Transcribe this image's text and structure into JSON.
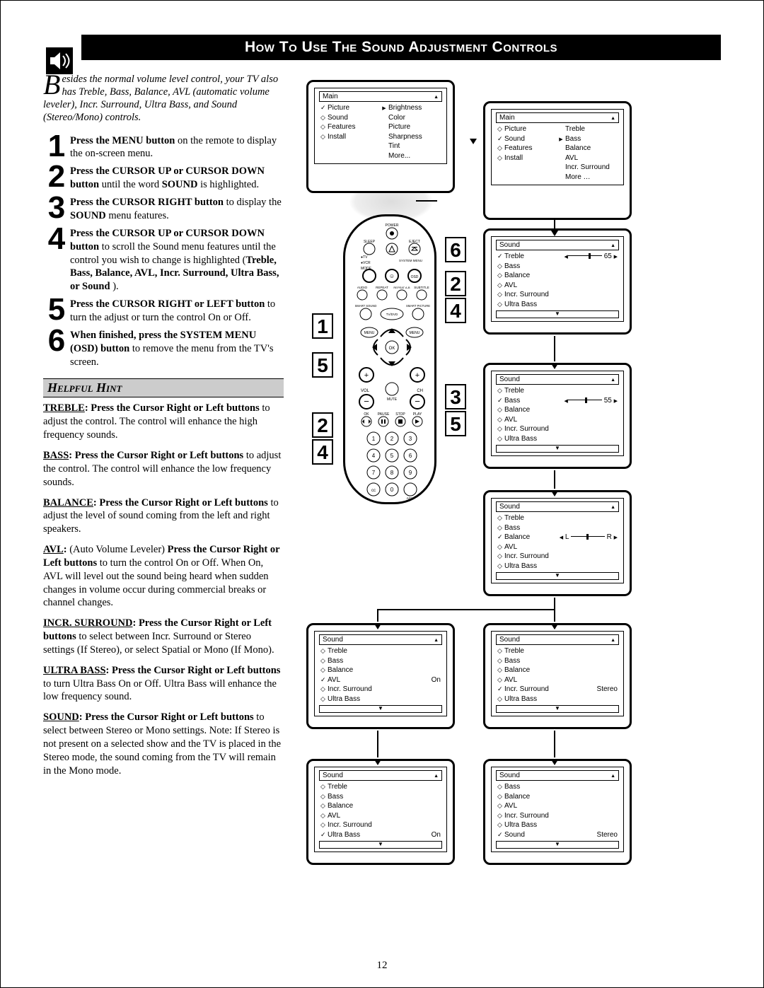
{
  "title": "How To Use The Sound Adjustment Controls",
  "intro": "esides the normal volume level control, your TV also has Treble, Bass, Balance, AVL (automatic volume leveler), Incr. Surround, Ultra Bass, and Sound (Stereo/Mono) controls.",
  "dropcap": "B",
  "steps": [
    {
      "n": "1",
      "html": "<b>Press the MENU button</b> on the remote to display the on-screen menu."
    },
    {
      "n": "2",
      "html": "<b>Press the CURSOR UP or CURSOR DOWN button</b> until the word <b>SOUND</b> is highlighted."
    },
    {
      "n": "3",
      "html": "<b>Press the CURSOR RIGHT button</b> to display the <b>SOUND</b> menu features."
    },
    {
      "n": "4",
      "html": "<b>Press the CURSOR UP or  CURSOR DOWN button</b> to scroll the Sound menu features until the control you wish to change is highlighted (<b>Treble, Bass, Balance, AVL, Incr. Surround, Ultra Bass, or Sound</b> )."
    },
    {
      "n": "5",
      "html": "<b>Press the CURSOR RIGHT or LEFT button</b> to turn the adjust or turn the control On or Off."
    },
    {
      "n": "6",
      "html": "<b>When finished, press the SYSTEM MENU (OSD) button</b> to remove the menu from the TV's screen."
    }
  ],
  "hint_title": "Helpful Hint",
  "hints": [
    {
      "label": "TREBLE",
      "html": "<b><u>TREBLE</u>:  Press the Cursor Right or Left buttons</b> to adjust the control. The control will enhance the high frequency sounds."
    },
    {
      "label": "BASS",
      "html": "<b><u>BASS</u>:  Press the Cursor Right or Left buttons</b> to adjust the control. The control will enhance the low frequency sounds."
    },
    {
      "label": "BALANCE",
      "html": "<b><u>BALANCE</u>:  Press the Cursor Right or Left buttons</b> to adjust the level of sound coming from the left and right speakers."
    },
    {
      "label": "AVL",
      "html": "<b><u>AVL</u>:</b>  (Auto Volume Leveler) <b>Press the Cursor Right or Left buttons</b> to turn the control On or Off. When On, AVL will level out the sound being heard when sudden changes in volume occur during commercial breaks or channel changes."
    },
    {
      "label": "INCR_SURROUND",
      "html": "<b><u>INCR. SURROUND</u>: Press the Cursor Right or Left buttons</b> to select between Incr. Surround or Stereo settings (If Stereo), or select Spatial or Mono (If Mono)."
    },
    {
      "label": "ULTRA_BASS",
      "html": "<b><u>ULTRA BASS</u>: Press the Cursor Right or Left buttons</b> to turn Ultra Bass On or Off. Ultra Bass will enhance the low frequency sound."
    },
    {
      "label": "SOUND",
      "html": "<b><u>SOUND</u>: Press the Cursor Right or Left buttons</b> to select between Stereo or Mono settings. Note: If Stereo is not present on a selected show and the TV is placed in the Stereo mode, the sound coming from the TV will remain in the Mono mode."
    }
  ],
  "page_number": "12",
  "osd": {
    "main": {
      "title": "Main",
      "left": [
        "Picture",
        "Sound",
        "Features",
        "Install"
      ],
      "leftMarks": [
        "check",
        "diamond",
        "diamond",
        "diamond"
      ],
      "selIndex": 0,
      "right": [
        "Brightness",
        "Color",
        "Picture",
        "Sharpness",
        "Tint",
        "More..."
      ]
    },
    "main2": {
      "title": "Main",
      "left": [
        "Picture",
        "Sound",
        "Features",
        "Install"
      ],
      "leftMarks": [
        "diamond",
        "check",
        "diamond",
        "diamond"
      ],
      "selIndex": 1,
      "right": [
        "Treble",
        "Bass",
        "Balance",
        "AVL",
        "Incr. Surround",
        "More …"
      ]
    },
    "sound_treble": {
      "title": "Sound",
      "items": [
        "Treble",
        "Bass",
        "Balance",
        "AVL",
        "Incr. Surround",
        "Ultra Bass"
      ],
      "marks": [
        "check",
        "diamond",
        "diamond",
        "diamond",
        "diamond",
        "diamond"
      ],
      "selIndex": 0,
      "value": "65",
      "slider": 0.65
    },
    "sound_bass": {
      "title": "Sound",
      "items": [
        "Treble",
        "Bass",
        "Balance",
        "AVL",
        "Incr. Surround",
        "Ultra Bass"
      ],
      "marks": [
        "diamond",
        "check",
        "diamond",
        "diamond",
        "diamond",
        "diamond"
      ],
      "selIndex": 1,
      "value": "55",
      "slider": 0.55
    },
    "sound_balance": {
      "title": "Sound",
      "items": [
        "Treble",
        "Bass",
        "Balance",
        "AVL",
        "Incr. Surround",
        "Ultra Bass"
      ],
      "marks": [
        "diamond",
        "diamond",
        "check",
        "diamond",
        "diamond",
        "diamond"
      ],
      "selIndex": 2,
      "balance": true
    },
    "sound_avl": {
      "title": "Sound",
      "items": [
        "Treble",
        "Bass",
        "Balance",
        "AVL",
        "Incr. Surround",
        "Ultra Bass"
      ],
      "marks": [
        "diamond",
        "diamond",
        "diamond",
        "check",
        "diamond",
        "diamond"
      ],
      "selIndex": 3,
      "value": "On"
    },
    "sound_incr": {
      "title": "Sound",
      "items": [
        "Treble",
        "Bass",
        "Balance",
        "AVL",
        "Incr. Surround",
        "Ultra Bass"
      ],
      "marks": [
        "diamond",
        "diamond",
        "diamond",
        "diamond",
        "check",
        "diamond"
      ],
      "selIndex": 4,
      "value": "Stereo"
    },
    "sound_ultra": {
      "title": "Sound",
      "items": [
        "Treble",
        "Bass",
        "Balance",
        "AVL",
        "Incr. Surround",
        "Ultra Bass"
      ],
      "marks": [
        "diamond",
        "diamond",
        "diamond",
        "diamond",
        "diamond",
        "check"
      ],
      "selIndex": 5,
      "value": "On"
    },
    "sound_sound": {
      "title": "Sound",
      "items": [
        "Bass",
        "Balance",
        "AVL",
        "Incr. Surround",
        "Ultra Bass",
        "Sound"
      ],
      "marks": [
        "diamond",
        "diamond",
        "diamond",
        "diamond",
        "diamond",
        "check"
      ],
      "selIndex": 5,
      "value": "Stereo"
    }
  },
  "callouts": {
    "c1": "1",
    "c2a": "2",
    "c4a": "4",
    "c5": "5",
    "c2b": "2",
    "c4b": "4",
    "c6": "6",
    "c3": "3",
    "c5b": "5"
  },
  "remote": {
    "labels": {
      "power": "POWER",
      "sleep": "SLEEP",
      "eject": "EJECT",
      "tv": "TV",
      "vcr": "VCR",
      "mode": "MODE",
      "sysmenu": "SYSTEM MENU",
      "osd": "OSD",
      "audio": "AUDIO",
      "repeat": "REPEAT",
      "repeatab": "REPEAT A-B",
      "subtitle": "SUBTITLE",
      "smartsound": "SMART SOUND",
      "smartpic": "SMART PICTURE",
      "tvdvd": "TV/DVD",
      "menu1": "MENU",
      "menu2": "MENU",
      "vol": "VOL",
      "ch": "CH",
      "mute": "MUTE",
      "ok": "OK",
      "pause": "PAUSE",
      "stop": "STOP",
      "play": "PLAY",
      "cc": "cc",
      "aich": "A/CH"
    },
    "numpad": [
      "1",
      "2",
      "3",
      "4",
      "5",
      "6",
      "7",
      "8",
      "9",
      "0"
    ]
  },
  "colors": {
    "black": "#000000",
    "white": "#ffffff",
    "grey": "#cccccc"
  }
}
